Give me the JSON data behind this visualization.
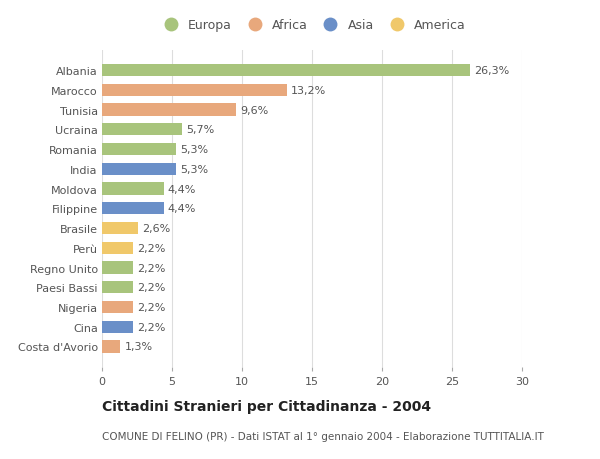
{
  "categories": [
    "Albania",
    "Marocco",
    "Tunisia",
    "Ucraina",
    "Romania",
    "India",
    "Moldova",
    "Filippine",
    "Brasile",
    "Perù",
    "Regno Unito",
    "Paesi Bassi",
    "Nigeria",
    "Cina",
    "Costa d'Avorio"
  ],
  "values": [
    26.3,
    13.2,
    9.6,
    5.7,
    5.3,
    5.3,
    4.4,
    4.4,
    2.6,
    2.2,
    2.2,
    2.2,
    2.2,
    2.2,
    1.3
  ],
  "labels": [
    "26,3%",
    "13,2%",
    "9,6%",
    "5,7%",
    "5,3%",
    "5,3%",
    "4,4%",
    "4,4%",
    "2,6%",
    "2,2%",
    "2,2%",
    "2,2%",
    "2,2%",
    "2,2%",
    "1,3%"
  ],
  "continent": [
    "Europa",
    "Africa",
    "Africa",
    "Europa",
    "Europa",
    "Asia",
    "Europa",
    "Asia",
    "America",
    "America",
    "Europa",
    "Europa",
    "Africa",
    "Asia",
    "Africa"
  ],
  "colors": {
    "Europa": "#a8c47c",
    "Africa": "#e8a87c",
    "Asia": "#6a8fc8",
    "America": "#f0c86a"
  },
  "legend_order": [
    "Europa",
    "Africa",
    "Asia",
    "America"
  ],
  "title": "Cittadini Stranieri per Cittadinanza - 2004",
  "subtitle": "COMUNE DI FELINO (PR) - Dati ISTAT al 1° gennaio 2004 - Elaborazione TUTTITALIA.IT",
  "xlim": [
    0,
    30
  ],
  "xticks": [
    0,
    5,
    10,
    15,
    20,
    25,
    30
  ],
  "background_color": "#ffffff",
  "grid_color": "#dddddd",
  "bar_height": 0.62,
  "label_fontsize": 8,
  "tick_fontsize": 8,
  "title_fontsize": 10,
  "subtitle_fontsize": 7.5
}
